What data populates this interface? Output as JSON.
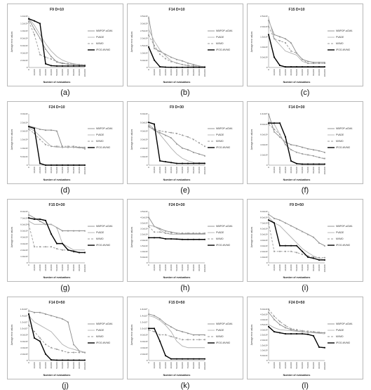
{
  "legend_entries": [
    "NBIPOP-aCMA",
    "PVADE",
    "MVMO",
    "IPOG-MVMO"
  ],
  "colors": {
    "NBIPOP-aCMA": "#8a8a8a",
    "PVADE": "#b0b0b0",
    "MVMO": "#9a9a9a",
    "IPOG-MVMO": "#000000"
  },
  "common": {
    "xlabel": "Number of evaluations",
    "ylabel": "Average error values",
    "x_ticks": [
      "0",
      "10,000",
      "20,000",
      "30,000",
      "40,000",
      "50,000",
      "60,000",
      "70,000",
      "80,000",
      "90,000",
      "100,000"
    ]
  },
  "chart_data": [
    {
      "tag": "(a)",
      "type": "line",
      "title": "F9 D=10",
      "y_ticks": [
        "0",
        "2.0x10²",
        "4.0x10²",
        "6.0x10²",
        "8.0x10²",
        "1.0x10³",
        "1.2x10³",
        "1.4x10³"
      ],
      "ylim": [
        0,
        1400
      ],
      "x": [
        0,
        10000,
        20000,
        30000,
        40000,
        50000,
        60000,
        70000,
        80000,
        90000,
        100000
      ],
      "series": [
        {
          "name": "NBIPOP-aCMA",
          "values": [
            1320,
            1050,
            800,
            500,
            300,
            150,
            110,
            90,
            80,
            70,
            60
          ]
        },
        {
          "name": "PVADE",
          "values": [
            1350,
            1150,
            900,
            650,
            450,
            300,
            200,
            140,
            100,
            80,
            70
          ]
        },
        {
          "name": "MVMO",
          "values": [
            1250,
            900,
            350,
            280,
            230,
            160,
            120,
            100,
            90,
            80,
            70
          ]
        },
        {
          "name": "IPOG-MVMO",
          "values": [
            1330,
            1270,
            1200,
            100,
            50,
            40,
            40,
            40,
            40,
            40,
            40
          ]
        }
      ]
    },
    {
      "tag": "(b)",
      "type": "line",
      "title": "F14 D=10",
      "y_ticks": [
        "0",
        "5.0x10²",
        "1.0x10³",
        "1.5x10³",
        "2.0x10³",
        "2.5x10³",
        "3.0x10³",
        "3.5x10³"
      ],
      "ylim": [
        0,
        3500
      ],
      "x": [
        0,
        10000,
        20000,
        30000,
        40000,
        50000,
        60000,
        70000,
        80000,
        90000,
        100000
      ],
      "series": [
        {
          "name": "NBIPOP-aCMA",
          "values": [
            3400,
            1300,
            1100,
            900,
            700,
            550,
            450,
            300,
            200,
            100,
            50
          ]
        },
        {
          "name": "PVADE",
          "values": [
            2600,
            1800,
            1200,
            800,
            450,
            300,
            200,
            100,
            80,
            50,
            50
          ]
        },
        {
          "name": "MVMO",
          "values": [
            2200,
            1500,
            900,
            600,
            400,
            300,
            200,
            150,
            100,
            80,
            60
          ]
        },
        {
          "name": "IPOG-MVMO",
          "values": [
            1400,
            500,
            50,
            20,
            10,
            10,
            10,
            10,
            10,
            10,
            10
          ]
        }
      ]
    },
    {
      "tag": "(c)",
      "type": "line",
      "title": "F15 D=10",
      "y_ticks": [
        "0",
        "5.0x10²",
        "1.0x10³",
        "1.5x10³",
        "2.0x10³",
        "2.5x10³"
      ],
      "ylim": [
        0,
        2500
      ],
      "x": [
        0,
        10000,
        20000,
        30000,
        40000,
        50000,
        60000,
        70000,
        80000,
        90000,
        100000
      ],
      "series": [
        {
          "name": "NBIPOP-aCMA",
          "values": [
            2300,
            1600,
            1500,
            1400,
            1200,
            700,
            400,
            300,
            250,
            250,
            250
          ]
        },
        {
          "name": "PVADE",
          "values": [
            2400,
            1400,
            1100,
            800,
            700,
            600,
            300,
            200,
            200,
            200,
            200
          ]
        },
        {
          "name": "MVMO",
          "values": [
            2000,
            1400,
            1300,
            1200,
            800,
            700,
            400,
            200,
            200,
            200,
            200
          ]
        },
        {
          "name": "IPOG-MVMO",
          "values": [
            1600,
            500,
            100,
            30,
            30,
            30,
            30,
            30,
            30,
            30,
            30
          ]
        }
      ]
    },
    {
      "tag": "(d)",
      "type": "line",
      "title": "F24 D=10",
      "y_ticks": [
        "0",
        "5.0x10¹",
        "1.0x10²",
        "1.5x10²",
        "2.0x10²",
        "2.5x10²",
        "3.0x10²"
      ],
      "ylim": [
        0,
        300
      ],
      "x": [
        0,
        10000,
        20000,
        30000,
        40000,
        50000,
        60000,
        70000,
        80000,
        90000,
        100000
      ],
      "series": [
        {
          "name": "NBIPOP-aCMA",
          "values": [
            230,
            220,
            210,
            205,
            205,
            200,
            105,
            105,
            105,
            105,
            105
          ]
        },
        {
          "name": "PVADE",
          "values": [
            220,
            200,
            170,
            140,
            110,
            105,
            105,
            105,
            105,
            100,
            100
          ]
        },
        {
          "name": "MVMO",
          "values": [
            210,
            185,
            150,
            120,
            110,
            110,
            110,
            110,
            110,
            105,
            95
          ]
        },
        {
          "name": "IPOG-MVMO",
          "values": [
            225,
            215,
            10,
            0,
            0,
            0,
            0,
            0,
            0,
            0,
            0
          ]
        }
      ]
    },
    {
      "tag": "(e)",
      "type": "line",
      "title": "F9 D=30",
      "y_ticks": [
        "0",
        "1.0x10³",
        "2.0x10³",
        "3.0x10³",
        "4.0x10³",
        "5.0x10³",
        "6.0x10³"
      ],
      "ylim": [
        0,
        6000
      ],
      "x": [
        0,
        10000,
        20000,
        30000,
        40000,
        50000,
        60000,
        70000,
        80000,
        90000,
        100000
      ],
      "series": [
        {
          "name": "NBIPOP-aCMA",
          "values": [
            4500,
            4100,
            3800,
            3500,
            3200,
            2500,
            2000,
            1800,
            1500,
            1300,
            1100
          ]
        },
        {
          "name": "PVADE",
          "values": [
            4800,
            4200,
            3600,
            2800,
            2000,
            1300,
            800,
            500,
            300,
            300,
            300
          ]
        },
        {
          "name": "MVMO",
          "values": [
            4600,
            4200,
            4000,
            3900,
            3800,
            3700,
            3500,
            3300,
            3000,
            2600,
            2200
          ]
        },
        {
          "name": "IPOG-MVMO",
          "values": [
            5000,
            4800,
            500,
            400,
            300,
            200,
            200,
            200,
            200,
            200,
            200
          ]
        }
      ]
    },
    {
      "tag": "(f)",
      "type": "line",
      "title": "F14 D=30",
      "y_ticks": [
        "0",
        "2.0x10³",
        "4.0x10³",
        "6.0x10³",
        "8.0x10³",
        "1.0x10⁴"
      ],
      "ylim": [
        0,
        10000
      ],
      "x": [
        0,
        10000,
        20000,
        30000,
        40000,
        50000,
        60000,
        70000,
        80000,
        90000,
        100000
      ],
      "series": [
        {
          "name": "NBIPOP-aCMA",
          "values": [
            10000,
            6500,
            5500,
            4500,
            4000,
            3800,
            3500,
            3200,
            3000,
            2800,
            2500
          ]
        },
        {
          "name": "PVADE",
          "values": [
            8500,
            8000,
            6000,
            4000,
            3000,
            2500,
            2200,
            2000,
            1800,
            1500,
            1200
          ]
        },
        {
          "name": "MVMO",
          "values": [
            8000,
            7000,
            6000,
            4000,
            3000,
            2500,
            2200,
            2000,
            1800,
            1500,
            1300
          ]
        },
        {
          "name": "IPOG-MVMO",
          "values": [
            8200,
            8200,
            8200,
            5500,
            800,
            300,
            200,
            200,
            200,
            200,
            200
          ]
        }
      ]
    },
    {
      "tag": "(g)",
      "type": "line",
      "title": "F15 D=30",
      "y_ticks": [
        "0",
        "1.0x10³",
        "2.0x10³",
        "3.0x10³",
        "4.0x10³",
        "5.0x10³",
        "6.0x10³",
        "7.0x10³",
        "8.0x10³"
      ],
      "ylim": [
        0,
        8000
      ],
      "x": [
        0,
        10000,
        20000,
        30000,
        40000,
        50000,
        60000,
        70000,
        80000,
        90000,
        100000
      ],
      "series": [
        {
          "name": "NBIPOP-aCMA",
          "values": [
            7500,
            7000,
            6500,
            6000,
            6000,
            5500,
            5000,
            5000,
            5000,
            5000,
            5000
          ]
        },
        {
          "name": "PVADE",
          "values": [
            6500,
            6000,
            6000,
            6000,
            6000,
            5500,
            3000,
            2500,
            2000,
            2000,
            2000
          ]
        },
        {
          "name": "MVMO",
          "values": [
            6000,
            2500,
            2500,
            2500,
            2500,
            2200,
            2000,
            2000,
            1700,
            1600,
            1600
          ]
        },
        {
          "name": "IPOG-MVMO",
          "values": [
            7000,
            6800,
            6800,
            6600,
            4500,
            3000,
            3000,
            2000,
            1800,
            1600,
            1600
          ]
        }
      ]
    },
    {
      "tag": "(h)",
      "type": "line",
      "title": "F24 D=30",
      "y_ticks": [
        "0",
        "5.0x10¹",
        "1.0x10²",
        "1.5x10²",
        "2.0x10²",
        "2.5x10²",
        "3.0x10²",
        "3.5x10²",
        "4.0x10²",
        "4.5x10²"
      ],
      "ylim": [
        0,
        450
      ],
      "x": [
        0,
        10000,
        20000,
        30000,
        40000,
        50000,
        60000,
        70000,
        80000,
        90000,
        100000
      ],
      "series": [
        {
          "name": "NBIPOP-aCMA",
          "values": [
            400,
            320,
            300,
            280,
            270,
            260,
            255,
            255,
            255,
            255,
            255
          ]
        },
        {
          "name": "PVADE",
          "values": [
            330,
            320,
            290,
            260,
            250,
            250,
            250,
            250,
            250,
            250,
            250
          ]
        },
        {
          "name": "MVMO",
          "values": [
            320,
            270,
            270,
            260,
            260,
            260,
            260,
            260,
            260,
            260,
            260
          ]
        },
        {
          "name": "IPOG-MVMO",
          "values": [
            220,
            220,
            220,
            210,
            210,
            208,
            205,
            205,
            205,
            205,
            205
          ]
        }
      ]
    },
    {
      "tag": "(i)",
      "type": "line",
      "title": "F9 D=50",
      "y_ticks": [
        "0",
        "1.0x10³",
        "2.0x10³",
        "3.0x10³",
        "4.0x10³",
        "5.0x10³",
        "6.0x10³",
        "7.0x10³",
        "8.0x10³",
        "9.0x10³"
      ],
      "ylim": [
        0,
        9000
      ],
      "x": [
        0,
        10000,
        20000,
        30000,
        40000,
        50000,
        60000,
        70000,
        80000,
        90000,
        100000
      ],
      "series": [
        {
          "name": "NBIPOP-aCMA",
          "values": [
            8500,
            7800,
            7500,
            7000,
            6500,
            6000,
            5500,
            5000,
            4500,
            3500,
            3000
          ]
        },
        {
          "name": "PVADE",
          "values": [
            8000,
            7000,
            6500,
            5500,
            4500,
            3500,
            2500,
            1800,
            1200,
            800,
            500
          ]
        },
        {
          "name": "MVMO",
          "values": [
            7000,
            2000,
            2000,
            2000,
            2000,
            1800,
            1500,
            1200,
            1000,
            900,
            900
          ]
        },
        {
          "name": "IPOG-MVMO",
          "values": [
            7500,
            7000,
            3000,
            3000,
            3000,
            3000,
            2000,
            1000,
            800,
            500,
            500
          ]
        }
      ]
    },
    {
      "tag": "(j)",
      "type": "line",
      "title": "F14 D=50",
      "y_ticks": [
        "0",
        "2.0x10³",
        "4.0x10³",
        "6.0x10³",
        "8.0x10³",
        "1.0x10⁴",
        "1.2x10⁴",
        "1.4x10⁴",
        "1.6x10⁴"
      ],
      "ylim": [
        0,
        16000
      ],
      "x": [
        0,
        10000,
        20000,
        30000,
        40000,
        50000,
        60000,
        70000,
        80000,
        90000,
        100000
      ],
      "series": [
        {
          "name": "NBIPOP-aCMA",
          "values": [
            15500,
            15000,
            15000,
            14500,
            14000,
            13500,
            13000,
            12000,
            5000,
            3000,
            2500
          ]
        },
        {
          "name": "PVADE",
          "values": [
            14000,
            12000,
            11000,
            10000,
            9000,
            7000,
            5000,
            4000,
            3500,
            3000,
            2500
          ]
        },
        {
          "name": "MVMO",
          "values": [
            11000,
            9000,
            7000,
            5000,
            4000,
            3500,
            3000,
            2500,
            2500,
            2500,
            2500
          ]
        },
        {
          "name": "IPOG-MVMO",
          "values": [
            14500,
            7000,
            6000,
            2000,
            200,
            100,
            100,
            100,
            100,
            100,
            100
          ]
        }
      ]
    },
    {
      "tag": "(k)",
      "type": "line",
      "title": "F15 D=50",
      "y_ticks": [
        "0",
        "2.0x10³",
        "4.0x10³",
        "6.0x10³",
        "8.0x10³",
        "1.0x10⁴",
        "1.2x10⁴",
        "1.4x10⁴",
        "1.6x10⁴"
      ],
      "ylim": [
        0,
        16000
      ],
      "x": [
        0,
        10000,
        20000,
        30000,
        40000,
        50000,
        60000,
        70000,
        80000,
        90000,
        100000
      ],
      "series": [
        {
          "name": "NBIPOP-aCMA",
          "values": [
            14500,
            14000,
            13000,
            11500,
            10500,
            9500,
            9000,
            8500,
            8000,
            8000,
            8000
          ]
        },
        {
          "name": "PVADE",
          "values": [
            14000,
            13500,
            12500,
            11000,
            9000,
            6000,
            4500,
            4000,
            4000,
            4000,
            4000
          ]
        },
        {
          "name": "MVMO",
          "values": [
            9500,
            9000,
            8000,
            8000,
            7500,
            7000,
            6500,
            6500,
            6500,
            6500,
            6500
          ]
        },
        {
          "name": "IPOG-MVMO",
          "values": [
            10000,
            10000,
            6000,
            1500,
            500,
            500,
            500,
            500,
            500,
            500,
            500
          ]
        }
      ]
    },
    {
      "tag": "(l)",
      "type": "line",
      "title": "F24 D=50",
      "y_ticks": [
        "0",
        "5.0x10¹",
        "1.0x10²",
        "1.5x10²",
        "2.0x10²",
        "2.5x10²",
        "3.0x10²",
        "3.5x10²",
        "4.0x10²",
        "4.5x10²",
        "5.0x10²"
      ],
      "ylim": [
        0,
        500
      ],
      "x": [
        0,
        10000,
        20000,
        30000,
        40000,
        50000,
        60000,
        70000,
        80000,
        90000,
        100000
      ],
      "series": [
        {
          "name": "NBIPOP-aCMA",
          "values": [
            470,
            400,
            350,
            320,
            300,
            290,
            280,
            275,
            275,
            270,
            270
          ]
        },
        {
          "name": "PVADE",
          "values": [
            350,
            320,
            300,
            295,
            290,
            285,
            280,
            275,
            270,
            265,
            260
          ]
        },
        {
          "name": "MVMO",
          "values": [
            500,
            430,
            380,
            340,
            310,
            300,
            290,
            285,
            280,
            275,
            270
          ]
        },
        {
          "name": "IPOG-MVMO",
          "values": [
            330,
            280,
            270,
            260,
            260,
            260,
            260,
            255,
            240,
            130,
            125
          ]
        }
      ]
    }
  ]
}
